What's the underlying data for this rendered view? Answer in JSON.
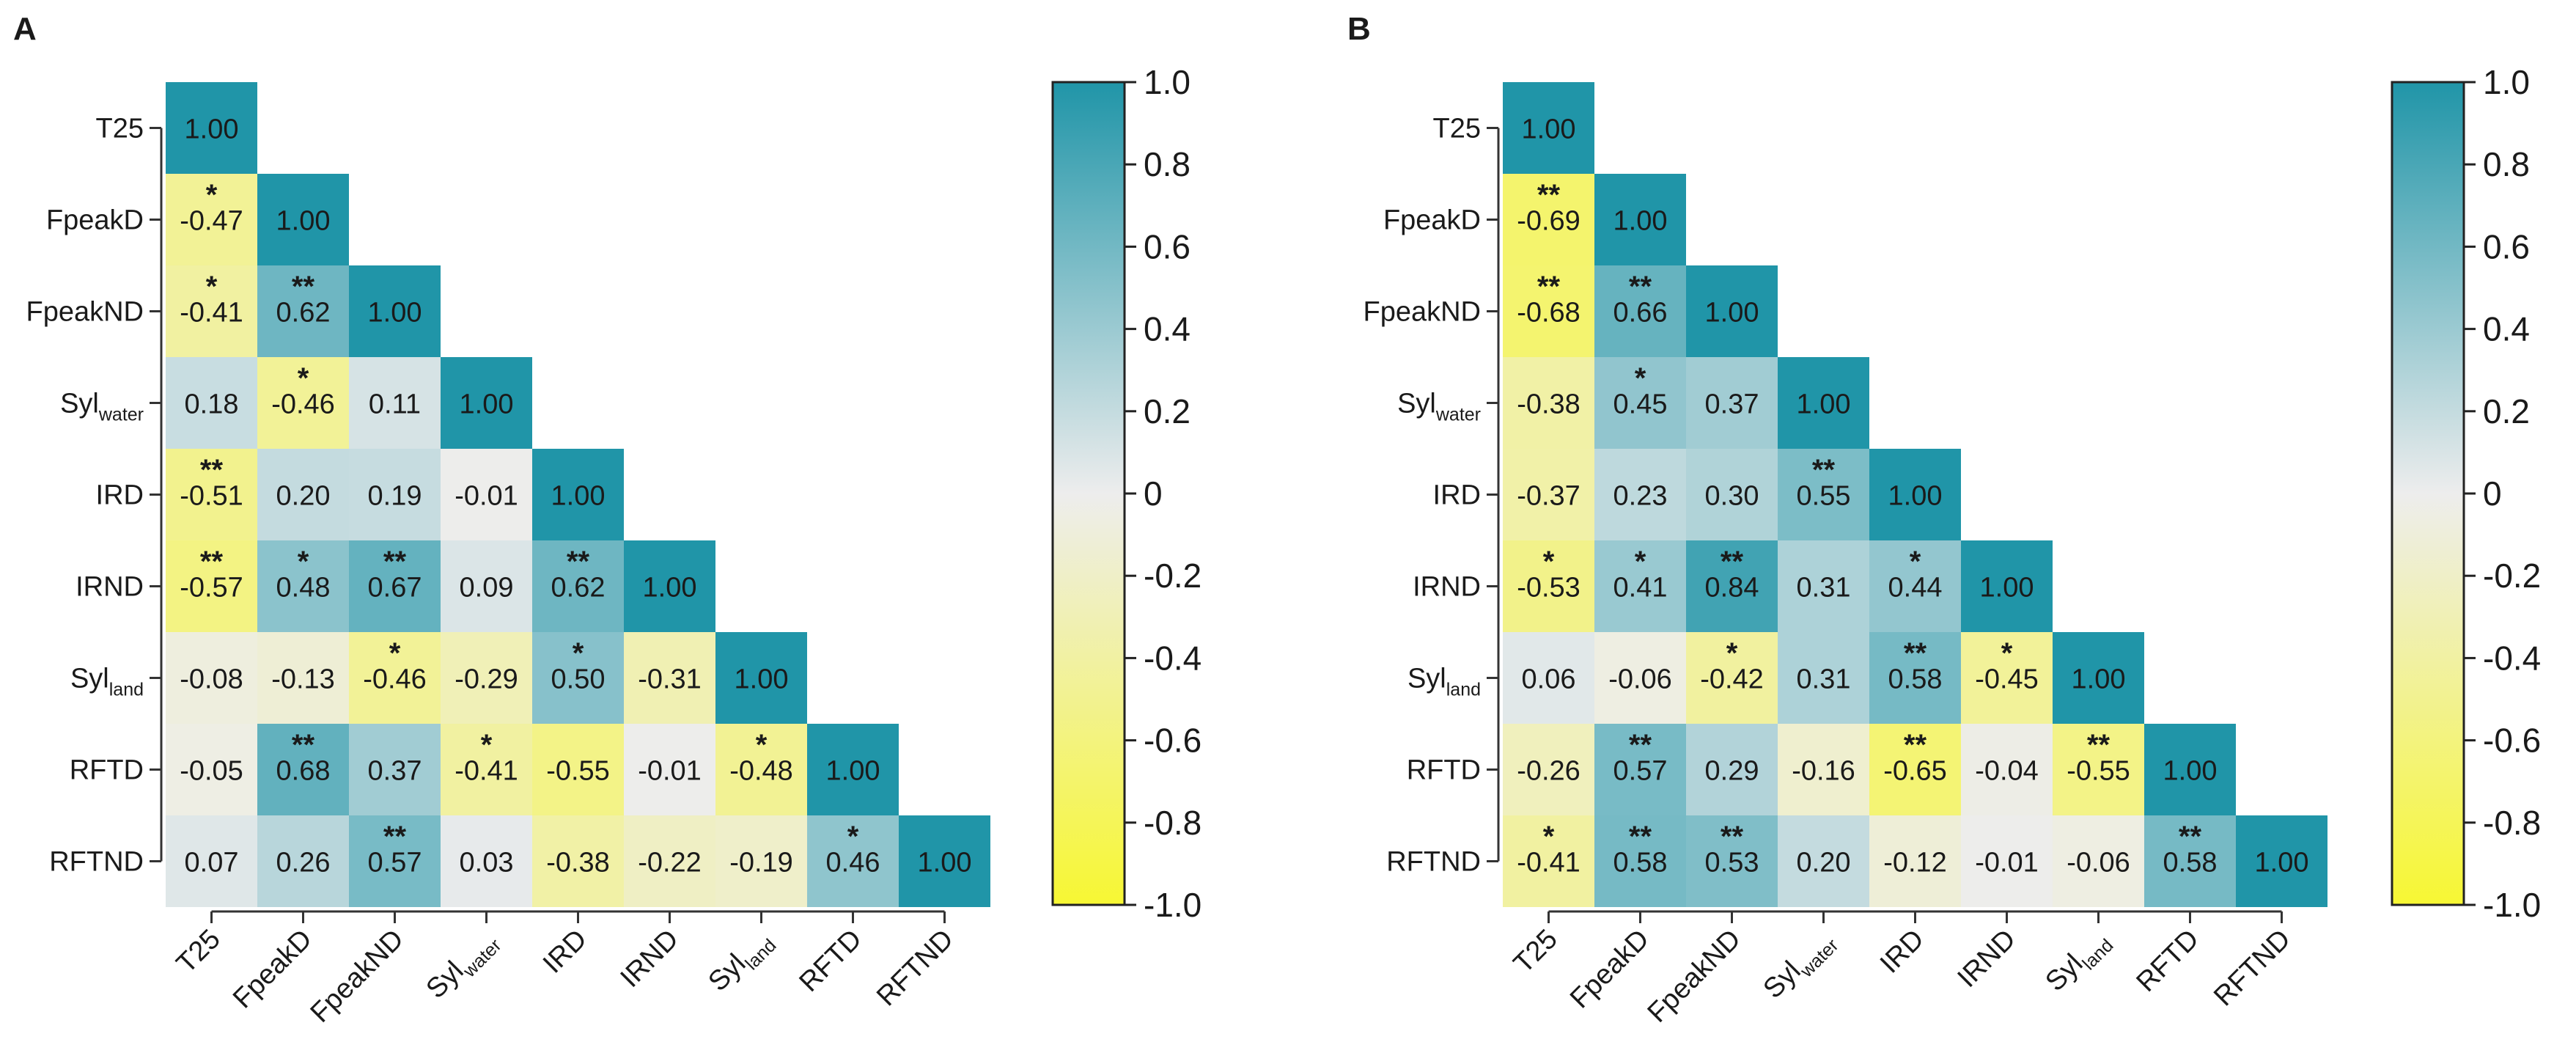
{
  "chart_data": [
    {
      "type": "heatmap",
      "panel_label": "A",
      "labels": [
        "T25",
        "FpeakD",
        "FpeakND",
        "Syl|water",
        "IRD",
        "IRND",
        "Syl|land",
        "RFTD",
        "RFTND"
      ],
      "values": [
        [
          1.0
        ],
        [
          -0.47,
          1.0
        ],
        [
          -0.41,
          0.62,
          1.0
        ],
        [
          0.18,
          -0.46,
          0.11,
          1.0
        ],
        [
          -0.51,
          0.2,
          0.19,
          -0.01,
          1.0
        ],
        [
          -0.57,
          0.48,
          0.67,
          0.09,
          0.62,
          1.0
        ],
        [
          -0.08,
          -0.13,
          -0.46,
          -0.29,
          0.5,
          -0.31,
          1.0
        ],
        [
          -0.05,
          0.68,
          0.37,
          -0.41,
          -0.55,
          -0.01,
          -0.48,
          1.0
        ],
        [
          0.07,
          0.26,
          0.57,
          0.03,
          -0.38,
          -0.22,
          -0.19,
          0.46,
          1.0
        ]
      ],
      "value_text": [
        [
          "1.00"
        ],
        [
          "-0.47",
          "1.00"
        ],
        [
          "-0.41",
          "0.62",
          "1.00"
        ],
        [
          "0.18",
          "-0.46",
          "0.11",
          "1.00"
        ],
        [
          "-0.51",
          "0.20",
          "0.19",
          "-0.01",
          "1.00"
        ],
        [
          "-0.57",
          "0.48",
          "0.67",
          "0.09",
          "0.62",
          "1.00"
        ],
        [
          "-0.08",
          "-0.13",
          "-0.46",
          "-0.29",
          "0.50",
          "-0.31",
          "1.00"
        ],
        [
          "-0.05",
          "0.68",
          "0.37",
          "-0.41",
          "-0.55",
          "-0.01",
          "-0.48",
          "1.00"
        ],
        [
          "0.07",
          "0.26",
          "0.57",
          "0.03",
          "-0.38",
          "-0.22",
          "-0.19",
          "0.46",
          "1.00"
        ]
      ],
      "significance": [
        [
          ""
        ],
        [
          "*",
          ""
        ],
        [
          "*",
          "**",
          ""
        ],
        [
          "",
          "*",
          "",
          ""
        ],
        [
          "**",
          "",
          "",
          "",
          ""
        ],
        [
          "**",
          "*",
          "**",
          "",
          "**",
          ""
        ],
        [
          "",
          "",
          "*",
          "",
          "*",
          "",
          ""
        ],
        [
          "",
          "**",
          "",
          "*",
          "",
          "",
          "*",
          ""
        ],
        [
          "",
          "",
          "**",
          "",
          "",
          "",
          "",
          "*",
          ""
        ]
      ],
      "colorbar": {
        "range": [
          -1.0,
          1.0
        ],
        "ticks": [
          "1.0",
          "0.8",
          "0.6",
          "0.4",
          "0.2",
          "0",
          "-0.2",
          "-0.4",
          "-0.6",
          "-0.8",
          "-1.0"
        ],
        "colors": {
          "negative": "#f7f733",
          "zero": "#ededed",
          "positive": "#2095a8"
        }
      }
    },
    {
      "type": "heatmap",
      "panel_label": "B",
      "labels": [
        "T25",
        "FpeakD",
        "FpeakND",
        "Syl|water",
        "IRD",
        "IRND",
        "Syl|land",
        "RFTD",
        "RFTND"
      ],
      "values": [
        [
          1.0
        ],
        [
          -0.69,
          1.0
        ],
        [
          -0.68,
          0.66,
          1.0
        ],
        [
          -0.38,
          0.45,
          0.37,
          1.0
        ],
        [
          -0.37,
          0.23,
          0.3,
          0.55,
          1.0
        ],
        [
          -0.53,
          0.41,
          0.84,
          0.31,
          0.44,
          1.0
        ],
        [
          0.06,
          -0.06,
          -0.42,
          0.31,
          0.58,
          -0.45,
          1.0
        ],
        [
          -0.26,
          0.57,
          0.29,
          -0.16,
          -0.65,
          -0.04,
          -0.55,
          1.0
        ],
        [
          -0.41,
          0.58,
          0.53,
          0.2,
          -0.12,
          -0.01,
          -0.06,
          0.58,
          1.0
        ]
      ],
      "value_text": [
        [
          "1.00"
        ],
        [
          "-0.69",
          "1.00"
        ],
        [
          "-0.68",
          "0.66",
          "1.00"
        ],
        [
          "-0.38",
          "0.45",
          "0.37",
          "1.00"
        ],
        [
          "-0.37",
          "0.23",
          "0.30",
          "0.55",
          "1.00"
        ],
        [
          "-0.53",
          "0.41",
          "0.84",
          "0.31",
          "0.44",
          "1.00"
        ],
        [
          "0.06",
          "-0.06",
          "-0.42",
          "0.31",
          "0.58",
          "-0.45",
          "1.00"
        ],
        [
          "-0.26",
          "0.57",
          "0.29",
          "-0.16",
          "-0.65",
          "-0.04",
          "-0.55",
          "1.00"
        ],
        [
          "-0.41",
          "0.58",
          "0.53",
          "0.20",
          "-0.12",
          "-0.01",
          "-0.06",
          "0.58",
          "1.00"
        ]
      ],
      "significance": [
        [
          ""
        ],
        [
          "**",
          ""
        ],
        [
          "**",
          "**",
          ""
        ],
        [
          "",
          "*",
          "",
          ""
        ],
        [
          "",
          "",
          "",
          "**",
          ""
        ],
        [
          "*",
          "*",
          "**",
          "",
          "*",
          ""
        ],
        [
          "",
          "",
          "*",
          "",
          "**",
          "*",
          ""
        ],
        [
          "",
          "**",
          "",
          "",
          "**",
          "",
          "**",
          ""
        ],
        [
          "*",
          "**",
          "**",
          "",
          "",
          "",
          "",
          "**",
          ""
        ]
      ],
      "colorbar": {
        "range": [
          -1.0,
          1.0
        ],
        "ticks": [
          "1.0",
          "0.8",
          "0.6",
          "0.4",
          "0.2",
          "0",
          "-0.2",
          "-0.4",
          "-0.6",
          "-0.8",
          "-1.0"
        ],
        "colors": {
          "negative": "#f7f733",
          "zero": "#ededed",
          "positive": "#2095a8"
        }
      }
    }
  ]
}
